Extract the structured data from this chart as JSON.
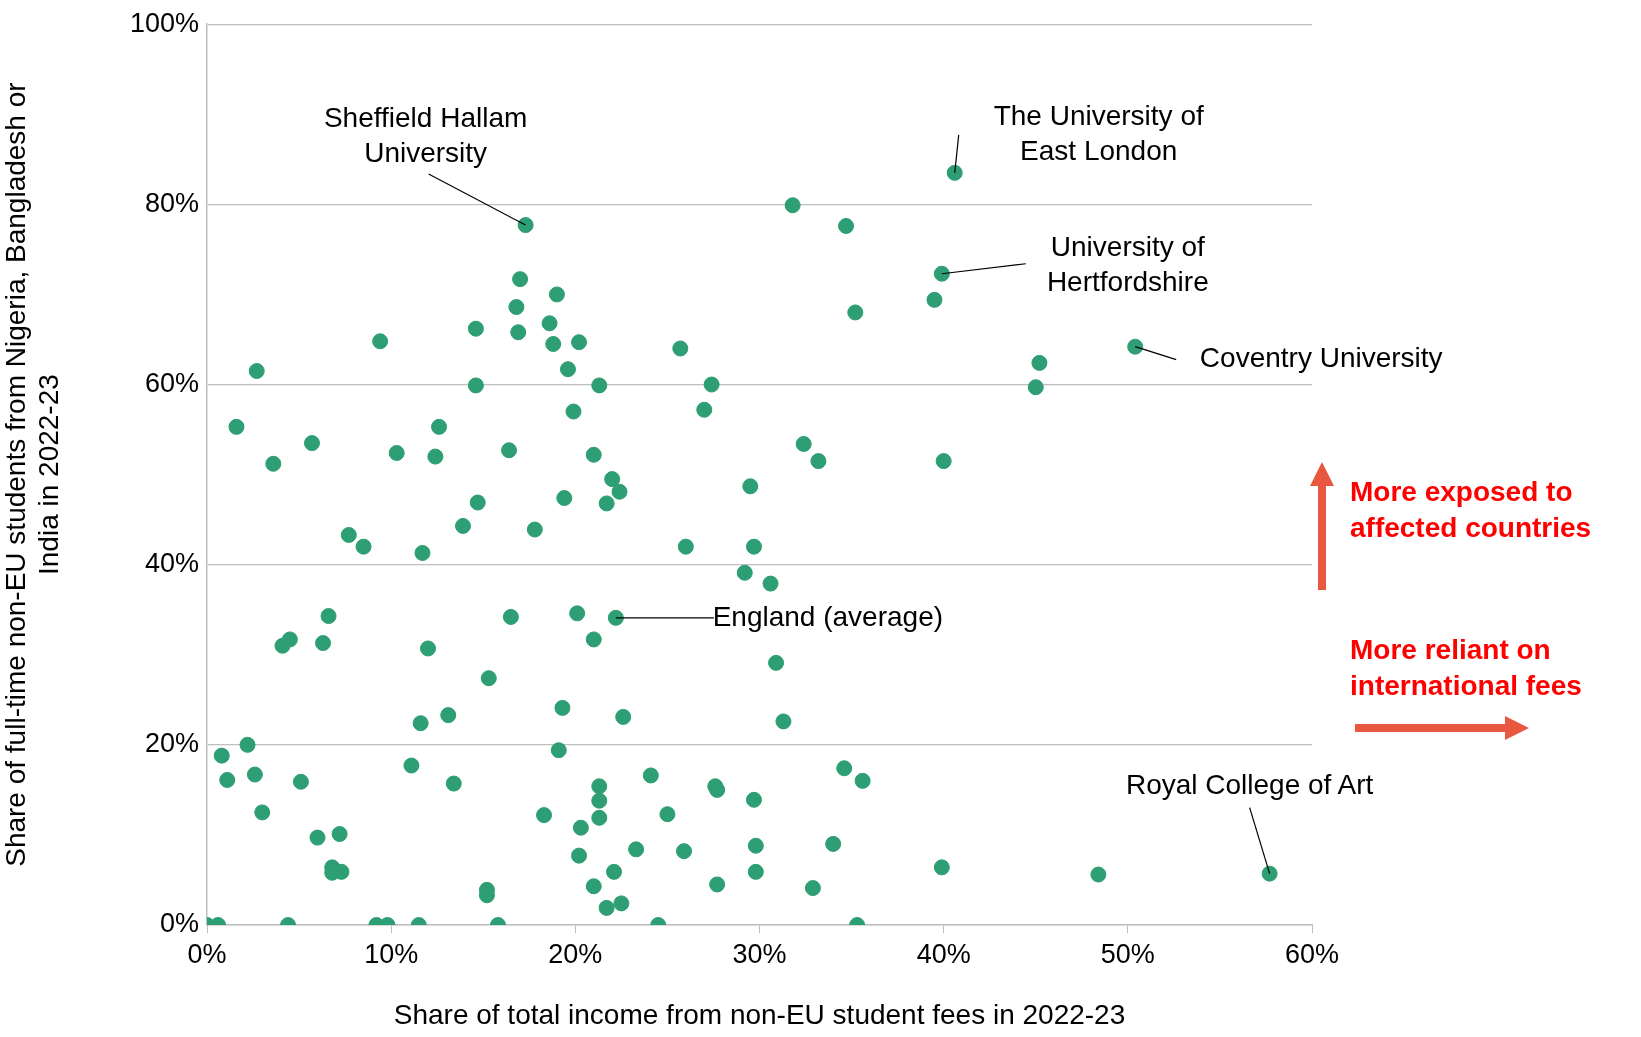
{
  "chart_data": {
    "type": "scatter",
    "xlabel": "Share of total income from non-EU student fees in 2022-23",
    "ylabel": "Share of full-time non-EU students from Nigeria, Bangladesh or India in 2022-23",
    "xlim": [
      0,
      60
    ],
    "xticks": [
      {
        "value": 0,
        "label": "0%"
      },
      {
        "value": 10,
        "label": "10%"
      },
      {
        "value": 20,
        "label": "20%"
      },
      {
        "value": 30,
        "label": "30%"
      },
      {
        "value": 40,
        "label": "40%"
      },
      {
        "value": 50,
        "label": "50%"
      },
      {
        "value": 60,
        "label": "60%"
      }
    ],
    "ylim": [
      0,
      100
    ],
    "yticks": [
      {
        "value": 0,
        "label": "0%"
      },
      {
        "value": 20,
        "label": "20%"
      },
      {
        "value": 40,
        "label": "40%"
      },
      {
        "value": 60,
        "label": "60%"
      },
      {
        "value": 80,
        "label": "80%"
      },
      {
        "value": 100,
        "label": "100%"
      }
    ],
    "grid": "y",
    "legend": false,
    "marker": "circle",
    "series": [
      {
        "color": "#2e9e74",
        "x": [
          0,
          0.6,
          4.4,
          9.2,
          9.8,
          11.5,
          15.8,
          24.5,
          35.3,
          0.8,
          1.1,
          2.2,
          2.6,
          3.0,
          1.6,
          2.7,
          3.6,
          4.1,
          4.5,
          5.1,
          5.7,
          6.0,
          6.3,
          6.6,
          6.8,
          6.8,
          7.2,
          7.3,
          7.7,
          8.5,
          9.4,
          10.3,
          11.1,
          11.6,
          11.7,
          12.0,
          12.4,
          12.6,
          13.1,
          13.4,
          13.9,
          14.6,
          14.6,
          14.7,
          15.2,
          15.2,
          15.3,
          16.4,
          16.5,
          16.8,
          17.0,
          16.9,
          17.3,
          17.8,
          18.3,
          18.6,
          18.8,
          19.0,
          19.1,
          19.3,
          19.4,
          19.6,
          19.9,
          20.1,
          20.2,
          20.3,
          20.2,
          21.0,
          21.0,
          21.0,
          21.3,
          21.3,
          21.3,
          21.3,
          21.7,
          21.7,
          22.0,
          22.1,
          22.2,
          22.4,
          22.5,
          22.6,
          23.3,
          24.1,
          25.0,
          25.7,
          25.9,
          26.0,
          27.0,
          27.4,
          27.6,
          27.7,
          27.7,
          29.2,
          29.5,
          29.7,
          29.7,
          29.8,
          29.8,
          30.6,
          30.9,
          31.3,
          31.8,
          32.4,
          32.9,
          33.2,
          34.0,
          34.6,
          34.7,
          35.2,
          35.6,
          39.5,
          39.9,
          39.9,
          40.0,
          40.6,
          45.0,
          45.2,
          48.4,
          50.4,
          57.7
        ],
        "values": [
          0,
          0,
          0,
          0,
          0,
          0,
          0,
          0,
          0,
          18.8,
          16.1,
          20.0,
          16.7,
          12.5,
          55.3,
          61.5,
          51.2,
          31.0,
          31.7,
          15.9,
          53.5,
          9.7,
          31.3,
          34.3,
          6.4,
          5.8,
          10.1,
          5.9,
          43.3,
          42.0,
          64.8,
          52.4,
          17.7,
          22.4,
          41.3,
          30.7,
          52.0,
          55.3,
          23.3,
          15.7,
          44.3,
          66.2,
          59.9,
          46.9,
          3.9,
          3.3,
          27.4,
          52.7,
          34.2,
          68.6,
          71.7,
          65.8,
          77.7,
          43.9,
          12.2,
          66.8,
          64.5,
          70.0,
          19.4,
          24.1,
          47.4,
          61.7,
          57.0,
          34.6,
          7.7,
          10.8,
          64.7,
          52.2,
          4.3,
          31.7,
          59.9,
          15.4,
          13.8,
          11.9,
          46.8,
          1.9,
          49.5,
          5.9,
          34.1,
          48.1,
          2.4,
          23.1,
          8.4,
          16.6,
          12.3,
          64.0,
          8.2,
          42.0,
          57.2,
          60.0,
          15.4,
          15.0,
          4.5,
          39.1,
          48.7,
          13.9,
          42.0,
          8.8,
          5.9,
          37.9,
          29.1,
          22.6,
          79.9,
          53.4,
          4.1,
          51.5,
          9.0,
          17.4,
          77.6,
          68.0,
          16.0,
          69.4,
          6.4,
          72.3,
          51.5,
          83.5,
          59.7,
          62.4,
          5.6,
          64.2,
          5.7
        ]
      }
    ],
    "annotations": [
      {
        "text": "Sheffield Hallam University",
        "x": 17.3,
        "y": 77.7
      },
      {
        "text": "The University of East London",
        "x": 40.6,
        "y": 83.5
      },
      {
        "text": "University of Hertfordshire",
        "x": 39.9,
        "y": 72.3
      },
      {
        "text": "Coventry University",
        "x": 50.4,
        "y": 64.2
      },
      {
        "text": "Royal College of Art",
        "x": 57.7,
        "y": 5.7
      },
      {
        "text": "England (average)",
        "x": 22.2,
        "y": 34.1
      },
      "More exposed to affected countries",
      "More reliant on international fees"
    ]
  }
}
